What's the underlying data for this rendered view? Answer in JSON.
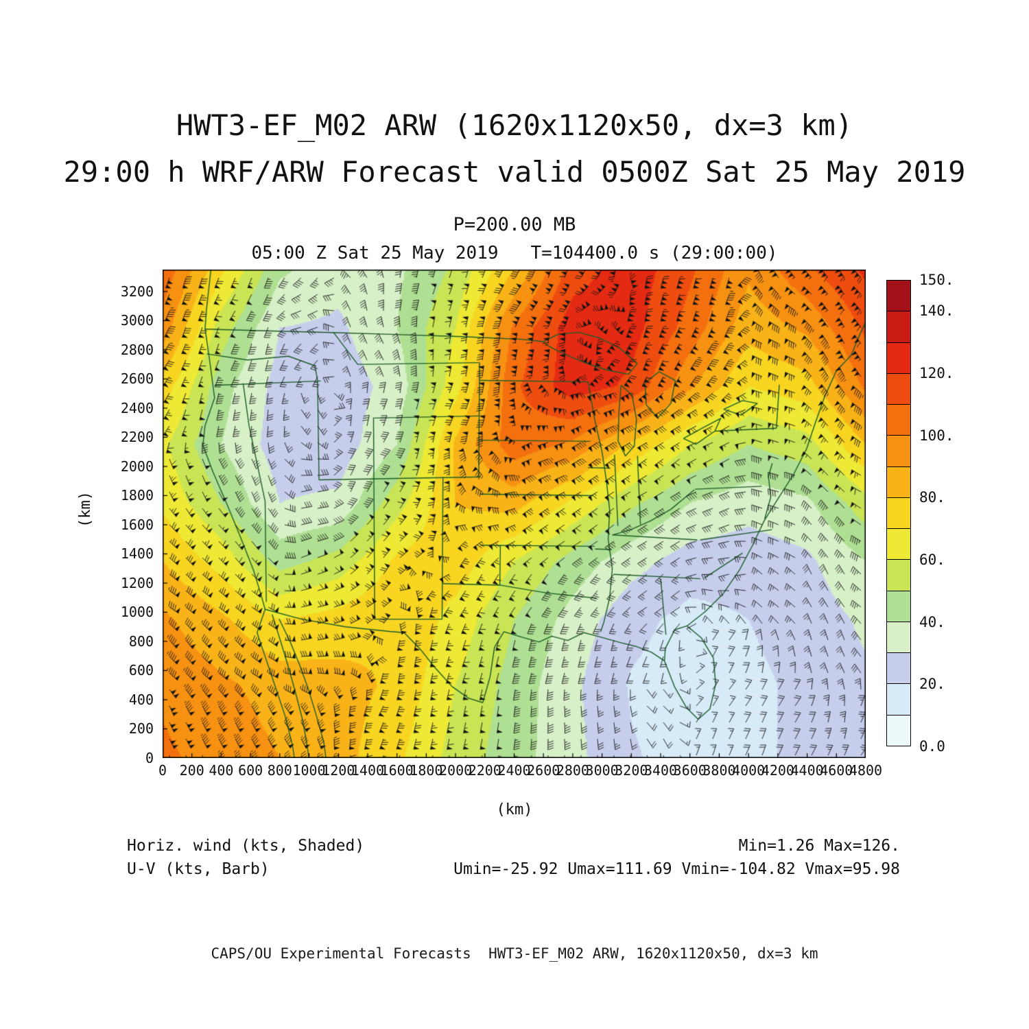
{
  "header": {
    "title_line1": "HWT3-EF_M02 ARW (1620x1120x50, dx=3 km)",
    "title_line2": "29:00 h WRF/ARW Forecast valid 0500Z Sat 25 May 2019",
    "pressure_label": "P=200.00 MB",
    "valid_time_label": "05:00 Z Sat 25 May 2019   T=104400.0 s (29:00:00)"
  },
  "axes": {
    "x_label": "(km)",
    "y_label": "(km)",
    "x_range": [
      0,
      4800
    ],
    "y_range": [
      0,
      3350
    ],
    "x_ticks": [
      0,
      200,
      400,
      600,
      800,
      1000,
      1200,
      1400,
      1600,
      1800,
      2000,
      2200,
      2400,
      2600,
      2800,
      3000,
      3200,
      3400,
      3600,
      3800,
      4000,
      4200,
      4400,
      4600,
      4800
    ],
    "y_ticks": [
      0,
      200,
      400,
      600,
      800,
      1000,
      1200,
      1400,
      1600,
      1800,
      2000,
      2200,
      2400,
      2600,
      2800,
      3000,
      3200
    ]
  },
  "colorbar": {
    "labels": [
      "150.",
      "140.",
      "120.",
      "100.",
      "80.",
      "60.",
      "40.",
      "20.",
      "0.0"
    ],
    "label_values": [
      150,
      140,
      120,
      100,
      80,
      60,
      40,
      20,
      0
    ],
    "level_step": 10,
    "colors": [
      "#EDF8FB",
      "#D6EBF7",
      "#C7CEEC",
      "#D8F0C8",
      "#AEDF93",
      "#C9E455",
      "#EDE934",
      "#F7D521",
      "#F9B318",
      "#F79112",
      "#F4700F",
      "#EF4D10",
      "#E42A12",
      "#C81C14",
      "#A31218"
    ]
  },
  "legend": {
    "field_label": "Horiz. wind (kts, Shaded)",
    "minmax_label": "Min=1.26 Max=126.",
    "barb_label": "U-V (kts, Barb)",
    "uv_minmax_label": "Umin=-25.92 Umax=111.69 Vmin=-104.82 Vmax=95.98"
  },
  "credit_line": "CAPS/OU Experimental Forecasts  HWT3-EF_M02 ARW, 1620x1120x50, dx=3 km",
  "chart_data": {
    "type": "heatmap",
    "title": "HWT3-EF_M02 ARW (1620x1120x50, dx=3 km) - 29:00 h WRF/ARW Forecast valid 0500Z Sat 25 May 2019",
    "field": "Horizontal wind speed (shaded) with U-V wind barbs",
    "level": "P=200.00 MB",
    "units": "kts",
    "x_range": [
      0,
      4800
    ],
    "y_range": [
      0,
      3350
    ],
    "stats": {
      "min": 1.26,
      "max": 126.0,
      "umin": -25.92,
      "umax": 111.69,
      "vmin": -104.82,
      "vmax": 95.98
    },
    "grid": {
      "x": [
        0,
        400,
        800,
        1200,
        1600,
        2000,
        2400,
        2800,
        3200,
        3600,
        4000,
        4400,
        4800
      ],
      "y": [
        3350,
        2950,
        2550,
        2150,
        1750,
        1350,
        950,
        500,
        0
      ],
      "values": [
        [
          108,
          72,
          42,
          34,
          38,
          52,
          80,
          115,
          126,
          112,
          92,
          108,
          122
        ],
        [
          96,
          55,
          30,
          28,
          40,
          60,
          102,
          126,
          124,
          106,
          84,
          92,
          112
        ],
        [
          76,
          44,
          26,
          24,
          34,
          66,
          108,
          126,
          118,
          92,
          70,
          76,
          102
        ],
        [
          62,
          40,
          25,
          24,
          40,
          82,
          106,
          98,
          78,
          60,
          50,
          56,
          80
        ],
        [
          68,
          50,
          30,
          32,
          56,
          80,
          84,
          68,
          52,
          40,
          34,
          38,
          56
        ],
        [
          80,
          66,
          46,
          54,
          72,
          76,
          60,
          46,
          34,
          25,
          24,
          28,
          40
        ],
        [
          92,
          82,
          70,
          74,
          80,
          66,
          50,
          36,
          23,
          17,
          20,
          24,
          32
        ],
        [
          98,
          92,
          86,
          84,
          78,
          60,
          46,
          32,
          19,
          15,
          18,
          22,
          28
        ],
        [
          102,
          96,
          90,
          84,
          72,
          56,
          44,
          33,
          21,
          16,
          18,
          22,
          26
        ]
      ]
    },
    "geo_color": "#1a5c28",
    "barb_color": "#141414",
    "geo": [
      [
        [
          330,
          3350
        ],
        [
          300,
          3080
        ],
        [
          290,
          2945
        ],
        [
          325,
          2700
        ],
        [
          355,
          2470
        ],
        [
          290,
          2280
        ],
        [
          275,
          2145
        ],
        [
          345,
          1960
        ],
        [
          440,
          1740
        ],
        [
          530,
          1520
        ],
        [
          620,
          1290
        ],
        [
          675,
          1110
        ],
        [
          700,
          1020
        ],
        [
          645,
          860
        ],
        [
          702,
          690
        ],
        [
          766,
          500
        ],
        [
          836,
          290
        ],
        [
          886,
          90
        ],
        [
          900,
          0
        ]
      ],
      [
        [
          748,
          985
        ],
        [
          806,
          800
        ],
        [
          860,
          620
        ],
        [
          910,
          440
        ],
        [
          956,
          260
        ],
        [
          988,
          80
        ],
        [
          998,
          0
        ]
      ],
      [
        [
          795,
          955
        ],
        [
          870,
          800
        ],
        [
          935,
          640
        ],
        [
          996,
          470
        ],
        [
          1050,
          290
        ],
        [
          1100,
          110
        ],
        [
          1115,
          0
        ]
      ],
      [
        [
          290,
          2942
        ],
        [
          700,
          2930
        ],
        [
          1150,
          2918
        ],
        [
          1600,
          2905
        ],
        [
          2050,
          2890
        ],
        [
          2450,
          2872
        ],
        [
          2600,
          2856
        ]
      ],
      [
        [
          2600,
          2856
        ],
        [
          2700,
          2906
        ],
        [
          2840,
          2920
        ],
        [
          2980,
          2882
        ],
        [
          3120,
          2812
        ],
        [
          3240,
          2706
        ],
        [
          3180,
          2632
        ],
        [
          3030,
          2662
        ],
        [
          2880,
          2712
        ],
        [
          2740,
          2772
        ],
        [
          2640,
          2822
        ],
        [
          2600,
          2856
        ]
      ],
      [
        [
          3130,
          2556
        ],
        [
          3205,
          2490
        ],
        [
          3235,
          2320
        ],
        [
          3220,
          2140
        ],
        [
          3160,
          2072
        ],
        [
          3110,
          2172
        ],
        [
          3115,
          2372
        ],
        [
          3130,
          2556
        ]
      ],
      [
        [
          3292,
          2572
        ],
        [
          3390,
          2650
        ],
        [
          3500,
          2590
        ],
        [
          3470,
          2432
        ],
        [
          3380,
          2332
        ],
        [
          3302,
          2422
        ],
        [
          3292,
          2572
        ]
      ],
      [
        [
          3556,
          2192
        ],
        [
          3690,
          2266
        ],
        [
          3810,
          2330
        ],
        [
          3770,
          2242
        ],
        [
          3640,
          2152
        ],
        [
          3556,
          2192
        ]
      ],
      [
        [
          3830,
          2392
        ],
        [
          3960,
          2452
        ],
        [
          4060,
          2432
        ],
        [
          3950,
          2352
        ],
        [
          3830,
          2392
        ]
      ],
      [
        [
          700,
          1020
        ],
        [
          950,
          952
        ],
        [
          1250,
          900
        ],
        [
          1550,
          868
        ],
        [
          1650,
          860
        ],
        [
          1760,
          745
        ],
        [
          1860,
          620
        ],
        [
          1976,
          490
        ],
        [
          2090,
          410
        ],
        [
          2186,
          380
        ]
      ],
      [
        [
          2186,
          380
        ],
        [
          2236,
          560
        ],
        [
          2266,
          760
        ],
        [
          2330,
          866
        ],
        [
          2450,
          830
        ],
        [
          2570,
          796
        ],
        [
          2656,
          836
        ],
        [
          2766,
          806
        ],
        [
          2876,
          860
        ],
        [
          2990,
          830
        ],
        [
          3110,
          796
        ],
        [
          3230,
          766
        ],
        [
          3336,
          726
        ],
        [
          3426,
          666
        ]
      ],
      [
        [
          3426,
          666
        ],
        [
          3496,
          486
        ],
        [
          3576,
          346
        ],
        [
          3656,
          266
        ],
        [
          3736,
          336
        ],
        [
          3776,
          506
        ],
        [
          3760,
          686
        ],
        [
          3676,
          826
        ],
        [
          3580,
          906
        ],
        [
          3496,
          880
        ],
        [
          3432,
          752
        ],
        [
          3426,
          666
        ]
      ],
      [
        [
          3580,
          906
        ],
        [
          3706,
          1006
        ],
        [
          3826,
          1126
        ],
        [
          3936,
          1286
        ],
        [
          4026,
          1456
        ],
        [
          4106,
          1626
        ],
        [
          4206,
          1786
        ],
        [
          4310,
          1950
        ],
        [
          4396,
          2120
        ],
        [
          4456,
          2300
        ],
        [
          4520,
          2480
        ],
        [
          4600,
          2656
        ],
        [
          4700,
          2762
        ],
        [
          4760,
          2906
        ],
        [
          4800,
          2990
        ]
      ],
      [
        [
          4110,
          1640
        ],
        [
          4152,
          1790
        ],
        [
          4136,
          1930
        ],
        [
          4162,
          2022
        ]
      ],
      [
        [
          355,
          2556
        ],
        [
          1080,
          2586
        ]
      ],
      [
        [
          550,
          2570
        ],
        [
          590,
          2280
        ],
        [
          700,
          1760
        ],
        [
          708,
          1070
        ]
      ],
      [
        [
          1058,
          2590
        ],
        [
          1068,
          1908
        ]
      ],
      [
        [
          1440,
          2336
        ],
        [
          1448,
          952
        ]
      ],
      [
        [
          1068,
          1908
        ],
        [
          2170,
          1928
        ]
      ],
      [
        [
          1445,
          2332
        ],
        [
          2158,
          2346
        ]
      ],
      [
        [
          1380,
          2700
        ],
        [
          2158,
          2712
        ]
      ],
      [
        [
          2158,
          1928
        ],
        [
          2164,
          2712
        ]
      ],
      [
        [
          1166,
          2920
        ],
        [
          1332,
          2700
        ],
        [
          1380,
          2700
        ]
      ],
      [
        [
          302,
          2772
        ],
        [
          580,
          2730
        ],
        [
          860,
          2756
        ],
        [
          1040,
          2690
        ],
        [
          1058,
          2590
        ]
      ],
      [
        [
          2164,
          2590
        ],
        [
          2905,
          2580
        ]
      ],
      [
        [
          2164,
          2180
        ],
        [
          2920,
          2172
        ]
      ],
      [
        [
          2166,
          1810
        ],
        [
          2940,
          1800
        ]
      ],
      [
        [
          2170,
          1460
        ],
        [
          2950,
          1452
        ]
      ],
      [
        [
          1912,
          1196
        ],
        [
          2302,
          1186
        ],
        [
          2622,
          1132
        ],
        [
          2962,
          1096
        ]
      ],
      [
        [
          1908,
          952
        ],
        [
          1914,
          1928
        ]
      ],
      [
        [
          2302,
          1186
        ],
        [
          2306,
          1460
        ]
      ],
      [
        [
          1448,
          952
        ],
        [
          1908,
          952
        ]
      ],
      [
        [
          2905,
          2580
        ],
        [
          2950,
          2320
        ],
        [
          3000,
          2100
        ],
        [
          3030,
          1900
        ],
        [
          3052,
          1700
        ],
        [
          3042,
          1500
        ],
        [
          3070,
          1300
        ],
        [
          3052,
          1100
        ],
        [
          3012,
          930
        ],
        [
          2990,
          866
        ]
      ],
      [
        [
          3085,
          2080
        ],
        [
          3108,
          1592
        ]
      ],
      [
        [
          3242,
          2072
        ],
        [
          3262,
          1602
        ]
      ],
      [
        [
          3630,
          1840
        ],
        [
          3470,
          1706
        ],
        [
          3330,
          1626
        ],
        [
          3196,
          1566
        ],
        [
          3070,
          1530
        ]
      ],
      [
        [
          3070,
          1530
        ],
        [
          3650,
          1496
        ]
      ],
      [
        [
          3080,
          1260
        ],
        [
          3670,
          1230
        ]
      ],
      [
        [
          3400,
          1230
        ],
        [
          3436,
          846
        ]
      ],
      [
        [
          3670,
          1496
        ],
        [
          4160,
          1566
        ]
      ],
      [
        [
          3700,
          1236
        ],
        [
          3960,
          1406
        ]
      ],
      [
        [
          3772,
          2242
        ],
        [
          4190,
          2262
        ]
      ],
      [
        [
          4190,
          2262
        ],
        [
          4210,
          2560
        ]
      ],
      [
        [
          3634,
          1844
        ],
        [
          4090,
          1864
        ]
      ],
      [
        [
          2905,
          1992
        ],
        [
          3056,
          1988
        ]
      ],
      [
        [
          2952,
          1434
        ],
        [
          3064,
          1430
        ]
      ]
    ]
  }
}
